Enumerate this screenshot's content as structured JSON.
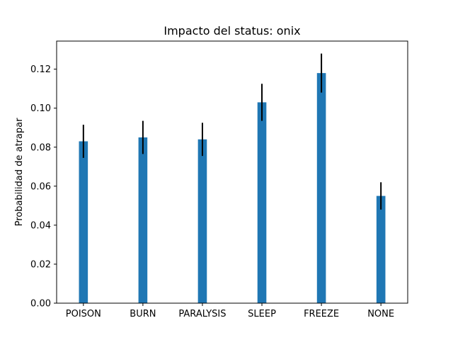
{
  "chart_data": {
    "type": "bar",
    "title": "Impacto del status: onix",
    "xlabel": "",
    "ylabel": "Probabilidad de atrapar",
    "categories": [
      "POISON",
      "BURN",
      "PARALYSIS",
      "SLEEP",
      "FREEZE",
      "NONE"
    ],
    "values": [
      0.083,
      0.085,
      0.084,
      0.103,
      0.118,
      0.055
    ],
    "errors": [
      0.0085,
      0.0085,
      0.0085,
      0.0095,
      0.01,
      0.007
    ],
    "ylim": [
      0,
      0.1344
    ],
    "yticks": [
      0.0,
      0.02,
      0.04,
      0.06,
      0.08,
      0.1,
      0.12
    ],
    "ytick_labels": [
      "0.00",
      "0.02",
      "0.04",
      "0.06",
      "0.08",
      "0.10",
      "0.12"
    ],
    "grid": false,
    "legend": "none",
    "bar_color": "#1f77b4",
    "error_color": "#000000"
  }
}
